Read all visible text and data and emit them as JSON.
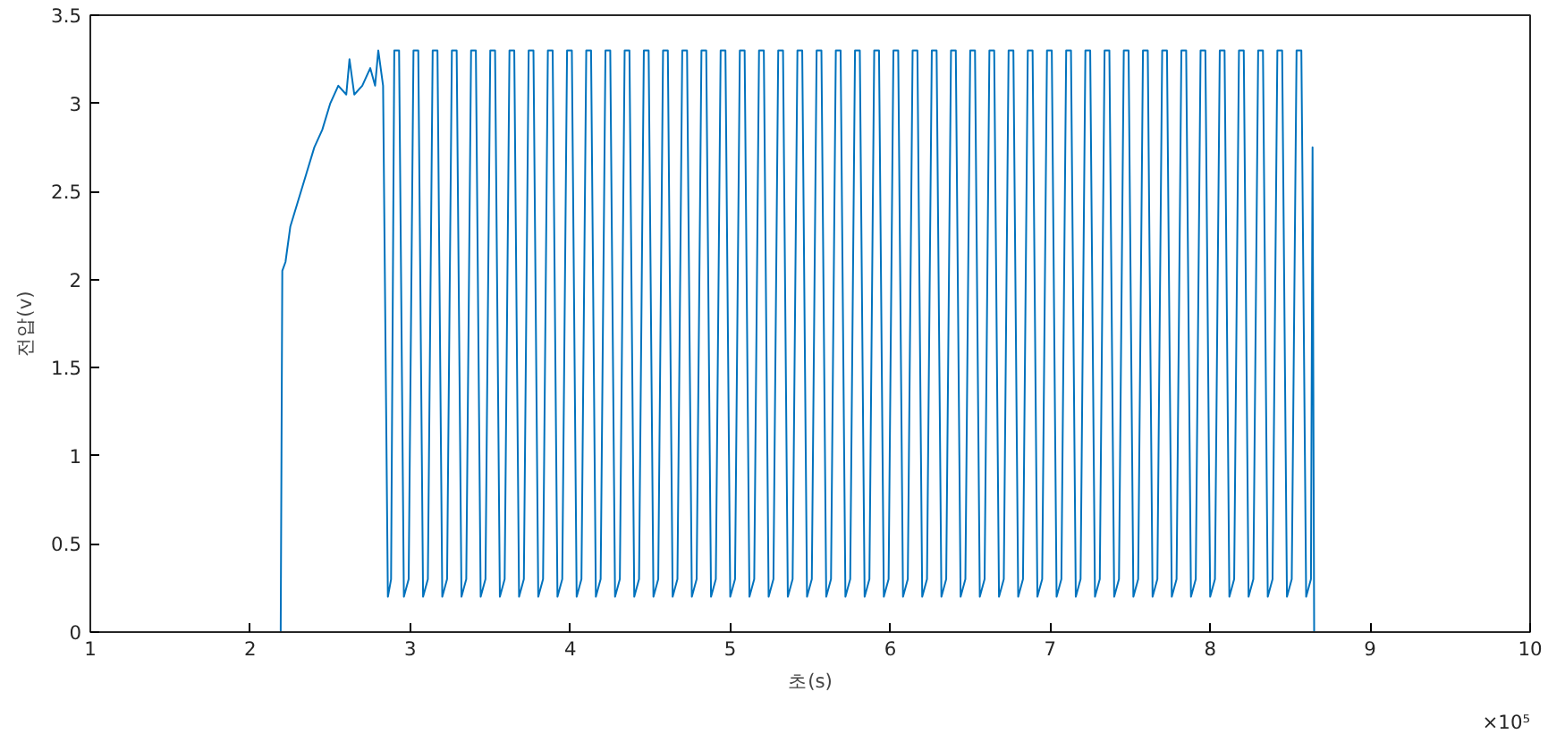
{
  "chart_data": {
    "type": "line",
    "xlabel": "초(s)",
    "ylabel": "전압(v)",
    "annotations": [
      "×10⁵"
    ],
    "xlim": [
      1,
      10
    ],
    "xticks": [
      1,
      2,
      3,
      4,
      5,
      6,
      7,
      8,
      9,
      10
    ],
    "ylim": [
      0,
      3.5
    ],
    "yticks": [
      0,
      0.5,
      1,
      1.5,
      2,
      2.5,
      3,
      3.5
    ],
    "grid": false,
    "marker": "none",
    "line_style": "solid",
    "series": [
      {
        "color": "#0072bd",
        "x": [
          1,
          2.19,
          2.2,
          2.22,
          2.25,
          2.3,
          2.35,
          2.4,
          2.45,
          2.5,
          2.55,
          2.6,
          2.62,
          2.65,
          2.7,
          2.75,
          2.78,
          2.8,
          2.83,
          2.86,
          2.88,
          2.9,
          2.93,
          2.96,
          2.99,
          3.02,
          3.05,
          3.08,
          3.11,
          3.14,
          3.17,
          3.2,
          3.23,
          3.26,
          3.29,
          3.32,
          3.35,
          3.38,
          3.41,
          3.44,
          3.47,
          3.5,
          3.53,
          3.56,
          3.59,
          3.62,
          3.65,
          3.68,
          3.71,
          3.74,
          3.77,
          3.8,
          3.83,
          3.86,
          3.89,
          3.92,
          3.95,
          3.98,
          4.01,
          4.04,
          4.07,
          4.1,
          4.13,
          4.16,
          4.19,
          4.22,
          4.25,
          4.28,
          4.31,
          4.34,
          4.37,
          4.4,
          4.43,
          4.46,
          4.49,
          4.52,
          4.55,
          4.58,
          4.61,
          4.64,
          4.67,
          4.7,
          4.73,
          4.76,
          4.79,
          4.82,
          4.85,
          4.88,
          4.91,
          4.94,
          4.97,
          5.0,
          5.03,
          5.06,
          5.09,
          5.12,
          5.15,
          5.18,
          5.21,
          5.24,
          5.27,
          5.3,
          5.33,
          5.36,
          5.39,
          5.42,
          5.45,
          5.48,
          5.51,
          5.54,
          5.57,
          5.6,
          5.63,
          5.66,
          5.69,
          5.72,
          5.75,
          5.78,
          5.81,
          5.84,
          5.87,
          5.9,
          5.93,
          5.96,
          5.99,
          6.02,
          6.05,
          6.08,
          6.11,
          6.14,
          6.17,
          6.2,
          6.23,
          6.26,
          6.29,
          6.32,
          6.35,
          6.38,
          6.41,
          6.44,
          6.47,
          6.5,
          6.53,
          6.56,
          6.59,
          6.62,
          6.65,
          6.68,
          6.71,
          6.74,
          6.77,
          6.8,
          6.83,
          6.86,
          6.89,
          6.92,
          6.95,
          6.98,
          7.01,
          7.04,
          7.07,
          7.1,
          7.13,
          7.16,
          7.19,
          7.22,
          7.25,
          7.28,
          7.31,
          7.34,
          7.37,
          7.4,
          7.43,
          7.46,
          7.49,
          7.52,
          7.55,
          7.58,
          7.61,
          7.64,
          7.67,
          7.7,
          7.73,
          7.76,
          7.79,
          7.82,
          7.85,
          7.88,
          7.91,
          7.94,
          7.97,
          8.0,
          8.03,
          8.06,
          8.09,
          8.12,
          8.15,
          8.18,
          8.21,
          8.24,
          8.27,
          8.3,
          8.33,
          8.36,
          8.39,
          8.42,
          8.45,
          8.48,
          8.51,
          8.54,
          8.57,
          8.6,
          8.63,
          8.64,
          8.65,
          10
        ],
        "values": [
          0,
          0,
          2.05,
          2.1,
          2.3,
          2.45,
          2.6,
          2.75,
          2.85,
          3.0,
          3.1,
          3.05,
          3.25,
          3.05,
          3.1,
          3.2,
          3.1,
          3.3,
          3.1,
          0.2,
          0.3,
          3.3,
          3.3,
          0.2,
          0.3,
          3.3,
          3.3,
          0.2,
          0.3,
          3.3,
          3.3,
          0.2,
          0.3,
          3.3,
          3.3,
          0.2,
          0.3,
          3.3,
          3.3,
          0.2,
          0.3,
          3.3,
          3.3,
          0.2,
          0.3,
          3.3,
          3.3,
          0.2,
          0.3,
          3.3,
          3.3,
          0.2,
          0.3,
          3.3,
          3.3,
          0.2,
          0.3,
          3.3,
          3.3,
          0.2,
          0.3,
          3.3,
          3.3,
          0.2,
          0.3,
          3.3,
          3.3,
          0.2,
          0.3,
          3.3,
          3.3,
          0.2,
          0.3,
          3.3,
          3.3,
          0.2,
          0.3,
          3.3,
          3.3,
          0.2,
          0.3,
          3.3,
          3.3,
          0.2,
          0.3,
          3.3,
          3.3,
          0.2,
          0.3,
          3.3,
          3.3,
          0.2,
          0.3,
          3.3,
          3.3,
          0.2,
          0.3,
          3.3,
          3.3,
          0.2,
          0.3,
          3.3,
          3.3,
          0.2,
          0.3,
          3.3,
          3.3,
          0.2,
          0.3,
          3.3,
          3.3,
          0.2,
          0.3,
          3.3,
          3.3,
          0.2,
          0.3,
          3.3,
          3.3,
          0.2,
          0.3,
          3.3,
          3.3,
          0.2,
          0.3,
          3.3,
          3.3,
          0.2,
          0.3,
          3.3,
          3.3,
          0.2,
          0.3,
          3.3,
          3.3,
          0.2,
          0.3,
          3.3,
          3.3,
          0.2,
          0.3,
          3.3,
          3.3,
          0.2,
          0.3,
          3.3,
          3.3,
          0.2,
          0.3,
          3.3,
          3.3,
          0.2,
          0.3,
          3.3,
          3.3,
          0.2,
          0.3,
          3.3,
          3.3,
          0.2,
          0.3,
          3.3,
          3.3,
          0.2,
          0.3,
          3.3,
          3.3,
          0.2,
          0.3,
          3.3,
          3.3,
          0.2,
          0.3,
          3.3,
          3.3,
          0.2,
          0.3,
          3.3,
          3.3,
          0.2,
          0.3,
          3.3,
          3.3,
          0.2,
          0.3,
          3.3,
          3.3,
          0.2,
          0.3,
          3.3,
          3.3,
          0.2,
          0.3,
          3.3,
          3.3,
          0.2,
          0.3,
          3.3,
          3.3,
          0.2,
          0.3,
          3.3,
          3.3,
          0.2,
          0.3,
          3.3,
          3.3,
          0.2,
          0.3,
          3.3,
          3.3,
          0.2,
          0.3,
          2.75,
          0,
          0
        ]
      }
    ]
  }
}
